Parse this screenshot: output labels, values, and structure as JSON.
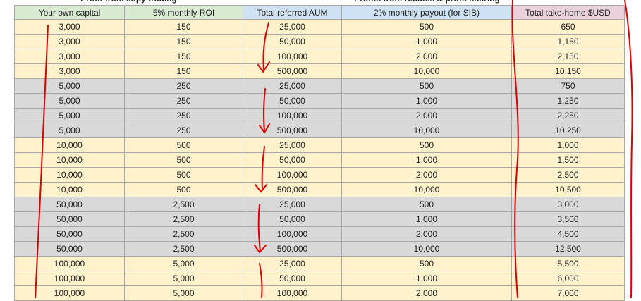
{
  "groups": [
    "Profit from copy trading",
    "Profits from rebates & profit sharing"
  ],
  "table": {
    "header": [
      "Your own capital",
      "5% monthly ROI",
      "Total referred AUM",
      "2% monthly payout (for SIB)",
      "Total take-home $USD"
    ],
    "rows": [
      [
        "3,000",
        "150",
        "25,000",
        "500",
        "650"
      ],
      [
        "3,000",
        "150",
        "50,000",
        "1,000",
        "1,150"
      ],
      [
        "3,000",
        "150",
        "100,000",
        "2,000",
        "2,150"
      ],
      [
        "3,000",
        "150",
        "500,000",
        "10,000",
        "10,150"
      ],
      [
        "5,000",
        "250",
        "25,000",
        "500",
        "750"
      ],
      [
        "5,000",
        "250",
        "50,000",
        "1,000",
        "1,250"
      ],
      [
        "5,000",
        "250",
        "100,000",
        "2,000",
        "2,250"
      ],
      [
        "5,000",
        "250",
        "500,000",
        "10,000",
        "10,250"
      ],
      [
        "10,000",
        "500",
        "25,000",
        "500",
        "1,000"
      ],
      [
        "10,000",
        "500",
        "50,000",
        "1,000",
        "1,500"
      ],
      [
        "10,000",
        "500",
        "100,000",
        "2,000",
        "2,500"
      ],
      [
        "10,000",
        "500",
        "500,000",
        "10,000",
        "10,500"
      ],
      [
        "50,000",
        "2,500",
        "25,000",
        "500",
        "3,000"
      ],
      [
        "50,000",
        "2,500",
        "50,000",
        "1,000",
        "3,500"
      ],
      [
        "50,000",
        "2,500",
        "100,000",
        "2,000",
        "4,500"
      ],
      [
        "50,000",
        "2,500",
        "500,000",
        "10,000",
        "12,500"
      ],
      [
        "100,000",
        "5,000",
        "25,000",
        "500",
        "5,500"
      ],
      [
        "100,000",
        "5,000",
        "50,000",
        "1,000",
        "6,000"
      ],
      [
        "100,000",
        "5,000",
        "100,000",
        "2,000",
        "7,000"
      ]
    ]
  }
}
